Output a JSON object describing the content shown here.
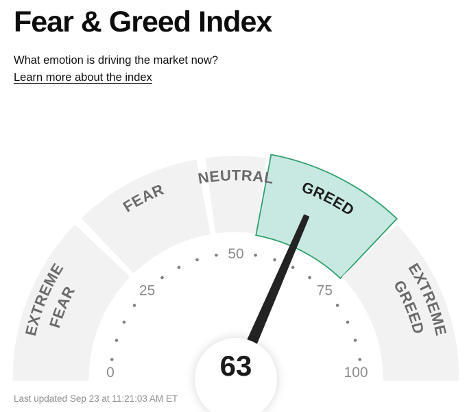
{
  "header": {
    "title": "Fear & Greed Index",
    "subtitle": "What emotion is driving the market now?",
    "link_text": "Learn more about the index"
  },
  "footer": {
    "last_updated": "Last updated Sep 23 at 11:21:03 AM ET"
  },
  "chart_data": {
    "type": "gauge",
    "title": "Fear & Greed Index",
    "min": 0,
    "max": 100,
    "value": 63,
    "value_label": "63",
    "current_zone": "GREED",
    "tick_labels": [
      "0",
      "25",
      "50",
      "75",
      "100"
    ],
    "minor_tick_step": 5,
    "segments": [
      {
        "label": "EXTREME FEAR",
        "lines": [
          "EXTREME",
          "FEAR"
        ],
        "from": 0,
        "to": 25,
        "highlighted": false
      },
      {
        "label": "FEAR",
        "lines": [
          "FEAR"
        ],
        "from": 25,
        "to": 45,
        "highlighted": false
      },
      {
        "label": "NEUTRAL",
        "lines": [
          "NEUTRAL"
        ],
        "from": 45,
        "to": 55,
        "highlighted": false
      },
      {
        "label": "GREED",
        "lines": [
          "GREED"
        ],
        "from": 55,
        "to": 75,
        "highlighted": true
      },
      {
        "label": "EXTREME GREED",
        "lines": [
          "EXTREME",
          "GREED"
        ],
        "from": 75,
        "to": 100,
        "highlighted": false
      }
    ],
    "colors": {
      "segment_fill": "#f2f2f2",
      "highlight_fill": "#c8e9e1",
      "highlight_stroke": "#30a06e",
      "segment_label": "#6a6a6a",
      "highlight_label": "#1f1f1f",
      "tick_label": "#8c8c8c",
      "dot": "#808080",
      "needle": "#232323",
      "hub_fill": "#ffffff",
      "value_text": "#1b1b1b"
    }
  }
}
